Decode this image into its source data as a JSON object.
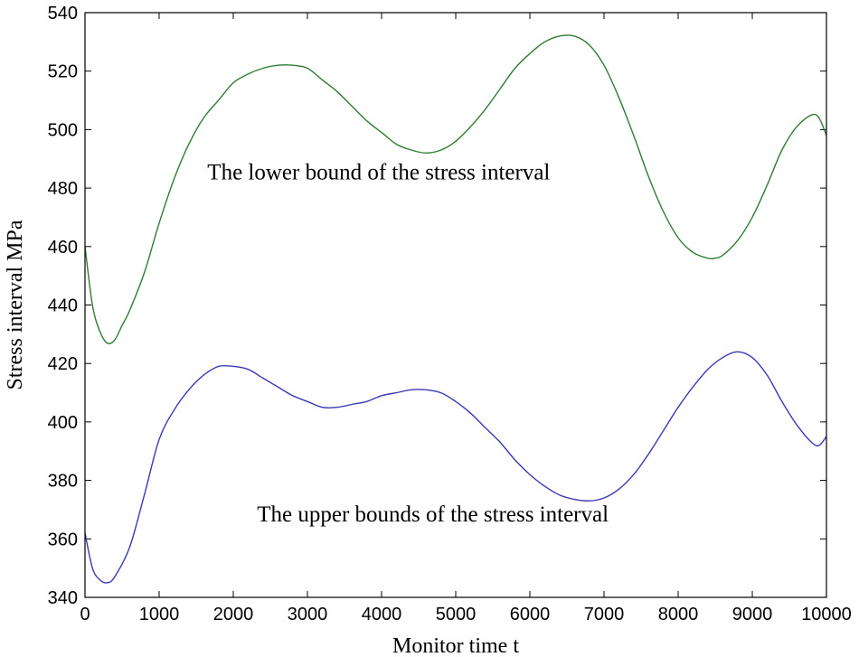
{
  "chart_data": {
    "type": "line",
    "xlabel": "Monitor time  t",
    "ylabel": "Stress interval MPa",
    "xlim": [
      0,
      10000
    ],
    "ylim": [
      340,
      540
    ],
    "xticks": [
      0,
      1000,
      2000,
      3000,
      4000,
      5000,
      6000,
      7000,
      8000,
      9000,
      10000
    ],
    "yticks": [
      340,
      360,
      380,
      400,
      420,
      440,
      460,
      480,
      500,
      520,
      540
    ],
    "grid": false,
    "series": [
      {
        "color": "#2e7d32",
        "x": [
          0,
          100,
          200,
          300,
          400,
          500,
          600,
          800,
          1000,
          1200,
          1400,
          1600,
          1800,
          2000,
          2200,
          2400,
          2600,
          2800,
          3000,
          3200,
          3400,
          3600,
          3800,
          4000,
          4200,
          4400,
          4600,
          4800,
          5000,
          5200,
          5400,
          5600,
          5800,
          6000,
          6200,
          6400,
          6600,
          6800,
          7000,
          7200,
          7400,
          7600,
          7800,
          8000,
          8200,
          8400,
          8500,
          8600,
          8800,
          9000,
          9200,
          9400,
          9600,
          9800,
          9900,
          10000
        ],
        "y": [
          460,
          440,
          431,
          427,
          428,
          433,
          438,
          451,
          468,
          483,
          495,
          504,
          510,
          516,
          519,
          521,
          522,
          522,
          521,
          517,
          513,
          508,
          503,
          499,
          495,
          493,
          492,
          493,
          496,
          501,
          507,
          514,
          521,
          526,
          530,
          532,
          532,
          529,
          522,
          511,
          498,
          484,
          472,
          463,
          458,
          456,
          456,
          457,
          462,
          470,
          481,
          493,
          501,
          505,
          504,
          498
        ]
      },
      {
        "color": "#3a3ab8",
        "x": [
          0,
          100,
          200,
          300,
          400,
          600,
          800,
          1000,
          1200,
          1400,
          1600,
          1800,
          2000,
          2200,
          2400,
          2600,
          2800,
          3000,
          3200,
          3400,
          3600,
          3800,
          4000,
          4200,
          4400,
          4600,
          4800,
          5000,
          5200,
          5400,
          5600,
          5800,
          6000,
          6200,
          6400,
          6600,
          6800,
          7000,
          7200,
          7400,
          7600,
          7800,
          8000,
          8200,
          8400,
          8600,
          8800,
          9000,
          9200,
          9400,
          9600,
          9800,
          9900,
          10000
        ],
        "y": [
          362,
          350,
          346,
          345,
          347,
          357,
          375,
          394,
          404,
          411,
          416,
          419,
          419,
          418,
          415,
          412,
          409,
          407,
          405,
          405,
          406,
          407,
          409,
          410,
          411,
          411,
          410,
          407,
          403,
          398,
          393,
          387,
          382,
          378,
          375,
          373.5,
          373,
          374,
          377,
          382,
          389,
          397,
          405,
          412,
          418,
          422,
          424,
          422,
          416,
          407,
          399,
          393,
          392,
          395
        ]
      }
    ],
    "annotations": [
      {
        "text": "The lower bound of the stress interval",
        "x": 1650,
        "y": 483
      },
      {
        "text": "The upper bounds of the stress interval",
        "x": 2320,
        "y": 366
      }
    ]
  }
}
